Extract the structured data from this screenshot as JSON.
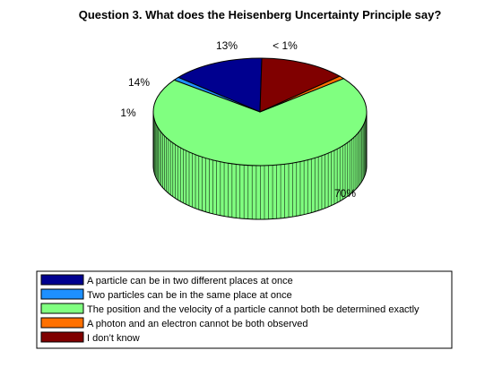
{
  "chart_data": {
    "type": "pie",
    "style": "3d",
    "title": "Question 3. What does the Heisenberg Uncertainty Principle say?",
    "slices": [
      {
        "label": "A particle can be in two different places at once",
        "value": 14,
        "display": "14%",
        "color": "#00008f"
      },
      {
        "label": "Two particles can be in the same place at once",
        "value": 1,
        "display": "1%",
        "color": "#1e90ff"
      },
      {
        "label": "The position and the velocity of a particle cannot both be determined exactly",
        "value": 70,
        "display": "70%",
        "color": "#80ff80"
      },
      {
        "label": "A photon and an electron cannot be both observed",
        "value": 0.9,
        "display": "< 1%",
        "color": "#ff7000"
      },
      {
        "label": "I don’t know",
        "value": 13,
        "display": "13%",
        "color": "#800000"
      }
    ],
    "legend_position": "bottom"
  }
}
